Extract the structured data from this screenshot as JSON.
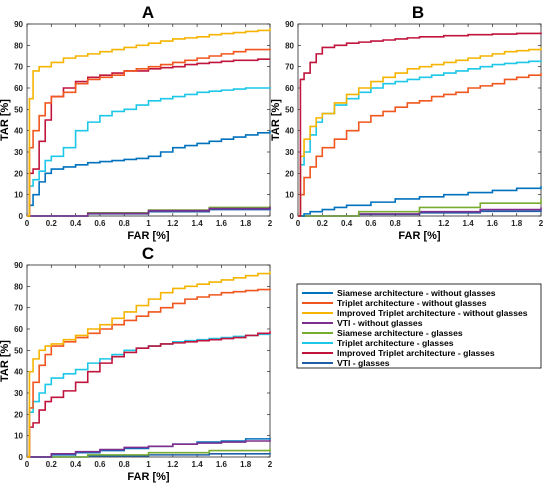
{
  "colors": {
    "siamese_noglasses": "#0072BD",
    "triplet_noglasses": "#F0561D",
    "improved_noglasses": "#F4B400",
    "vti_noglasses": "#7E2F8E",
    "siamese_glasses": "#77AC30",
    "triplet_glasses": "#1CC7E8",
    "improved_glasses": "#C0143C",
    "vti_glasses": "#1F5FA8"
  },
  "legend": [
    {
      "label": "Siamese architecture - without glasses",
      "color_key": "siamese_noglasses"
    },
    {
      "label": "Triplet architecture - without glasses",
      "color_key": "triplet_noglasses"
    },
    {
      "label": "Improved Triplet architecture - without glasses",
      "color_key": "improved_noglasses"
    },
    {
      "label": "VTI - without glasses",
      "color_key": "vti_noglasses"
    },
    {
      "label": "Siamese architecture - glasses",
      "color_key": "siamese_glasses"
    },
    {
      "label": "Triplet architecture - glasses",
      "color_key": "triplet_glasses"
    },
    {
      "label": "Improved Triplet architecture - glasses",
      "color_key": "improved_glasses"
    },
    {
      "label": "VTI - glasses",
      "color_key": "vti_glasses"
    }
  ],
  "chart_data": [
    {
      "panel": "A",
      "type": "line",
      "xlabel": "FAR [%]",
      "ylabel": "TAR [%]",
      "xlim": [
        0,
        2
      ],
      "ylim": [
        0,
        90
      ],
      "xticks": [
        "0",
        "0.2",
        "0.4",
        "0.6",
        "0.8",
        "1",
        "1.2",
        "1.4",
        "1.6",
        "1.8",
        "2"
      ],
      "yticks": [
        "0",
        "10",
        "20",
        "30",
        "40",
        "50",
        "60",
        "70",
        "80",
        "90"
      ],
      "grid": false,
      "series": [
        {
          "key": "siamese_glasses",
          "x": [
            0,
            0.5,
            1.0,
            1.5,
            2.0
          ],
          "y": [
            0,
            1.5,
            2.8,
            4,
            5
          ]
        },
        {
          "key": "vti_glasses",
          "x": [
            0,
            0.5,
            1.0,
            1.5,
            2.0
          ],
          "y": [
            0,
            1,
            2,
            3,
            4
          ]
        },
        {
          "key": "vti_noglasses",
          "x": [
            0,
            0.5,
            1.0,
            1.5,
            2.0
          ],
          "y": [
            0,
            1.2,
            2.5,
            3.5,
            4.5
          ]
        },
        {
          "key": "siamese_noglasses",
          "x": [
            0,
            0.02,
            0.05,
            0.1,
            0.15,
            0.2,
            0.3,
            0.4,
            0.5,
            0.6,
            0.7,
            0.8,
            0.9,
            1.0,
            1.1,
            1.2,
            1.3,
            1.4,
            1.5,
            1.6,
            1.7,
            1.8,
            1.9,
            2.0
          ],
          "y": [
            0,
            5,
            10,
            16,
            20,
            22,
            23,
            24,
            25,
            25.5,
            26,
            26.5,
            27,
            28,
            30,
            32,
            33,
            34,
            35,
            36,
            37,
            38,
            39,
            40
          ]
        },
        {
          "key": "triplet_glasses",
          "x": [
            0,
            0.02,
            0.05,
            0.1,
            0.15,
            0.2,
            0.3,
            0.4,
            0.5,
            0.6,
            0.7,
            0.8,
            0.9,
            1.0,
            1.1,
            1.2,
            1.3,
            1.4,
            1.5,
            1.6,
            1.7,
            1.8,
            1.9,
            2.0
          ],
          "y": [
            0,
            14,
            17,
            21,
            26,
            28,
            32,
            40,
            44,
            47,
            49,
            50,
            52,
            54,
            55,
            56,
            57,
            58,
            58.5,
            59,
            59.5,
            60,
            60,
            60.5
          ]
        },
        {
          "key": "improved_glasses",
          "x": [
            0,
            0.02,
            0.05,
            0.1,
            0.15,
            0.2,
            0.3,
            0.4,
            0.5,
            0.6,
            0.7,
            0.8,
            0.9,
            1.0,
            1.1,
            1.2,
            1.3,
            1.4,
            1.5,
            1.6,
            1.7,
            1.8,
            1.9,
            2.0
          ],
          "y": [
            0,
            20,
            22,
            35,
            45,
            56,
            60,
            63,
            65,
            66,
            67,
            68,
            68,
            69,
            69.5,
            70,
            71,
            71.5,
            72,
            72.5,
            73,
            73,
            73.5,
            73.5
          ]
        },
        {
          "key": "triplet_noglasses",
          "x": [
            0,
            0.02,
            0.05,
            0.1,
            0.15,
            0.2,
            0.3,
            0.4,
            0.5,
            0.6,
            0.7,
            0.8,
            0.9,
            1.0,
            1.1,
            1.2,
            1.3,
            1.4,
            1.5,
            1.6,
            1.7,
            1.8,
            1.9,
            2.0
          ],
          "y": [
            0,
            32,
            40,
            47,
            53,
            56,
            58,
            62,
            64,
            65,
            66,
            68,
            69,
            70,
            71,
            72,
            73,
            74,
            75,
            76,
            77,
            78,
            78,
            78.5
          ]
        },
        {
          "key": "improved_noglasses",
          "x": [
            0,
            0.02,
            0.05,
            0.1,
            0.2,
            0.3,
            0.4,
            0.5,
            0.6,
            0.7,
            0.8,
            0.9,
            1.0,
            1.1,
            1.2,
            1.3,
            1.4,
            1.5,
            1.6,
            1.7,
            1.8,
            1.9,
            2.0
          ],
          "y": [
            0,
            55,
            68,
            70,
            72,
            74,
            75,
            76,
            77,
            78,
            79,
            80,
            81,
            82,
            83,
            83.5,
            84,
            85,
            85.5,
            86,
            86.5,
            87,
            88
          ]
        }
      ]
    },
    {
      "panel": "B",
      "type": "line",
      "xlabel": "FAR [%]",
      "ylabel": "TAR [%]",
      "xlim": [
        0,
        2
      ],
      "ylim": [
        0,
        90
      ],
      "xticks": [
        "0",
        "0.2",
        "0.4",
        "0.6",
        "0.8",
        "1",
        "1.2",
        "1.4",
        "1.6",
        "1.8",
        "2"
      ],
      "yticks": [
        "0",
        "10",
        "20",
        "30",
        "40",
        "50",
        "60",
        "70",
        "80",
        "90"
      ],
      "grid": false,
      "series": [
        {
          "key": "vti_glasses",
          "x": [
            0,
            0.5,
            1.0,
            1.5,
            2.0
          ],
          "y": [
            0,
            0.8,
            1.5,
            2.2,
            3
          ]
        },
        {
          "key": "vti_noglasses",
          "x": [
            0,
            0.5,
            1.0,
            1.5,
            2.0
          ],
          "y": [
            0,
            1,
            2,
            3,
            4
          ]
        },
        {
          "key": "siamese_glasses",
          "x": [
            0,
            0.5,
            1.0,
            1.5,
            2.0
          ],
          "y": [
            0,
            2,
            4,
            6,
            8
          ]
        },
        {
          "key": "siamese_noglasses",
          "x": [
            0,
            0.05,
            0.1,
            0.2,
            0.3,
            0.4,
            0.6,
            0.8,
            1.0,
            1.2,
            1.4,
            1.6,
            1.8,
            2.0
          ],
          "y": [
            0,
            1,
            2,
            3,
            4,
            5,
            6.5,
            8,
            9,
            10,
            11,
            12,
            13,
            14
          ]
        },
        {
          "key": "triplet_noglasses",
          "x": [
            0,
            0.02,
            0.05,
            0.1,
            0.15,
            0.2,
            0.3,
            0.4,
            0.5,
            0.6,
            0.7,
            0.8,
            0.9,
            1.0,
            1.1,
            1.2,
            1.3,
            1.4,
            1.5,
            1.6,
            1.7,
            1.8,
            1.9,
            2.0
          ],
          "y": [
            0,
            10,
            18,
            23,
            28,
            32,
            36,
            40,
            44,
            47,
            49,
            51,
            53,
            54,
            56,
            57,
            58,
            60,
            61,
            62,
            64,
            65,
            66,
            67
          ]
        },
        {
          "key": "triplet_glasses",
          "x": [
            0,
            0.02,
            0.05,
            0.1,
            0.15,
            0.2,
            0.3,
            0.4,
            0.5,
            0.6,
            0.7,
            0.8,
            0.9,
            1.0,
            1.1,
            1.2,
            1.3,
            1.4,
            1.5,
            1.6,
            1.7,
            1.8,
            1.9,
            2.0
          ],
          "y": [
            0,
            24,
            30,
            38,
            44,
            48,
            52,
            55,
            58,
            60,
            62,
            63,
            64,
            65,
            66,
            67,
            68,
            69,
            70,
            71,
            71.5,
            72,
            72.5,
            73
          ]
        },
        {
          "key": "improved_noglasses",
          "x": [
            0,
            0.02,
            0.05,
            0.1,
            0.15,
            0.2,
            0.3,
            0.4,
            0.5,
            0.6,
            0.7,
            0.8,
            0.9,
            1.0,
            1.1,
            1.2,
            1.3,
            1.4,
            1.5,
            1.6,
            1.7,
            1.8,
            1.9,
            2.0
          ],
          "y": [
            0,
            28,
            36,
            42,
            46,
            48,
            53,
            57,
            60,
            63,
            65,
            67,
            69,
            70,
            71,
            72,
            73,
            74,
            75,
            76,
            77,
            77.5,
            78,
            79
          ]
        },
        {
          "key": "improved_glasses",
          "x": [
            0,
            0.02,
            0.05,
            0.1,
            0.15,
            0.2,
            0.3,
            0.4,
            0.5,
            0.6,
            0.7,
            0.8,
            0.9,
            1.0,
            1.2,
            1.4,
            1.6,
            1.8,
            2.0
          ],
          "y": [
            0,
            64,
            67,
            72,
            76,
            79,
            80,
            81,
            81.5,
            82,
            82.5,
            83,
            83.5,
            84,
            84.5,
            85,
            85.3,
            85.6,
            86
          ]
        }
      ]
    },
    {
      "panel": "C",
      "type": "line",
      "xlabel": "FAR [%]",
      "ylabel": "TAR [%]",
      "xlim": [
        0,
        2
      ],
      "ylim": [
        0,
        90
      ],
      "xticks": [
        "0",
        "0.2",
        "0.4",
        "0.6",
        "0.8",
        "1",
        "1.2",
        "1.4",
        "1.6",
        "1.8",
        "2"
      ],
      "yticks": [
        "0",
        "10",
        "20",
        "30",
        "40",
        "50",
        "60",
        "70",
        "80",
        "90"
      ],
      "grid": false,
      "series": [
        {
          "key": "vti_glasses",
          "x": [
            0,
            0.5,
            1.0,
            1.5,
            2.0
          ],
          "y": [
            0,
            0.5,
            1,
            1.5,
            2
          ]
        },
        {
          "key": "siamese_glasses",
          "x": [
            0,
            0.5,
            1.0,
            1.5,
            2.0
          ],
          "y": [
            0,
            1,
            2,
            3,
            4
          ]
        },
        {
          "key": "siamese_noglasses",
          "x": [
            0,
            0.2,
            0.4,
            0.6,
            0.8,
            1.0,
            1.2,
            1.4,
            1.6,
            1.8,
            2.0
          ],
          "y": [
            0,
            1,
            2,
            3,
            4,
            5,
            6,
            7,
            7.5,
            8.5,
            9
          ]
        },
        {
          "key": "vti_noglasses",
          "x": [
            0,
            0.2,
            0.4,
            0.6,
            0.8,
            1.0,
            1.2,
            1.4,
            1.6,
            1.8,
            2.0
          ],
          "y": [
            0,
            1.5,
            2.5,
            3.5,
            4.5,
            5,
            6,
            6.5,
            7,
            7.5,
            8
          ]
        },
        {
          "key": "triplet_glasses",
          "x": [
            0,
            0.02,
            0.05,
            0.1,
            0.15,
            0.2,
            0.3,
            0.4,
            0.5,
            0.6,
            0.7,
            0.8,
            0.9,
            1.0,
            1.1,
            1.2,
            1.3,
            1.4,
            1.5,
            1.6,
            1.7,
            1.8,
            1.9,
            2.0
          ],
          "y": [
            0,
            21,
            26,
            30,
            34,
            37,
            39,
            41,
            44,
            46,
            48,
            50,
            51,
            52,
            53,
            54,
            54.5,
            55,
            55.5,
            56,
            56.5,
            57,
            57.5,
            58
          ]
        },
        {
          "key": "improved_glasses",
          "x": [
            0,
            0.02,
            0.05,
            0.1,
            0.15,
            0.2,
            0.3,
            0.4,
            0.5,
            0.6,
            0.7,
            0.8,
            0.9,
            1.0,
            1.1,
            1.2,
            1.3,
            1.4,
            1.5,
            1.6,
            1.7,
            1.8,
            1.9,
            2.0
          ],
          "y": [
            0,
            14,
            16,
            22,
            26,
            28,
            31,
            35,
            40,
            44,
            47,
            49,
            51,
            52,
            53,
            53.5,
            54,
            54.5,
            55,
            55.5,
            56,
            57,
            58,
            59
          ]
        },
        {
          "key": "triplet_noglasses",
          "x": [
            0,
            0.02,
            0.05,
            0.1,
            0.15,
            0.2,
            0.3,
            0.4,
            0.5,
            0.6,
            0.7,
            0.8,
            0.9,
            1.0,
            1.1,
            1.2,
            1.3,
            1.4,
            1.5,
            1.6,
            1.7,
            1.8,
            1.9,
            2.0
          ],
          "y": [
            0,
            23,
            35,
            43,
            48,
            52,
            54,
            56,
            58,
            60,
            62,
            64,
            66,
            68,
            70,
            72,
            74,
            75,
            76,
            77,
            77.5,
            78,
            78.5,
            79
          ]
        },
        {
          "key": "improved_noglasses",
          "x": [
            0,
            0.02,
            0.05,
            0.1,
            0.15,
            0.2,
            0.3,
            0.4,
            0.5,
            0.6,
            0.7,
            0.8,
            0.9,
            1.0,
            1.1,
            1.2,
            1.3,
            1.4,
            1.5,
            1.6,
            1.7,
            1.8,
            1.9,
            2.0
          ],
          "y": [
            0,
            40,
            46,
            50,
            52,
            53,
            55,
            57,
            60,
            62,
            65,
            68,
            71,
            74,
            77,
            79,
            80,
            81,
            82,
            83,
            84,
            85,
            86,
            87
          ]
        }
      ]
    }
  ]
}
